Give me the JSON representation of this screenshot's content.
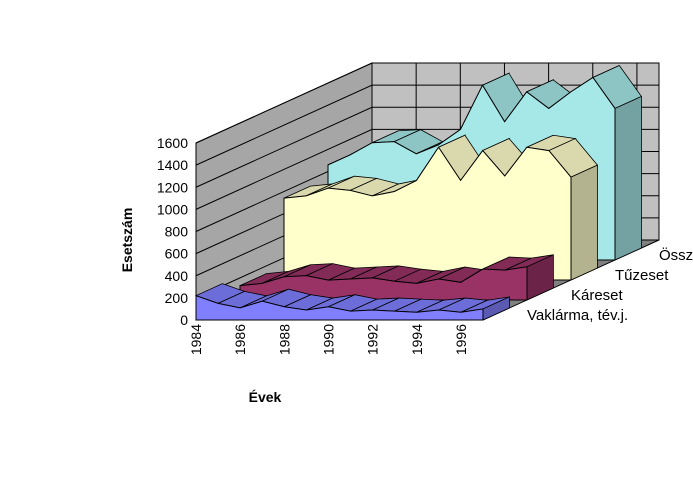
{
  "chart_data": {
    "type": "area",
    "projection": "3d",
    "title": "",
    "xlabel": "Évek",
    "ylabel": "Esetszám",
    "ylim": [
      0,
      1600
    ],
    "yticks": [
      0,
      200,
      400,
      600,
      800,
      1000,
      1200,
      1400,
      1600
    ],
    "x": [
      1984,
      1985,
      1986,
      1987,
      1988,
      1989,
      1990,
      1991,
      1992,
      1993,
      1994,
      1995,
      1996,
      1997
    ],
    "xtick_labels": [
      "1984",
      "1986",
      "1988",
      "1990",
      "1992",
      "1994",
      "1996"
    ],
    "grid": true,
    "series": [
      {
        "name": "Vaklárma, tév.j.",
        "color": "#8080ff",
        "values": [
          220,
          150,
          110,
          170,
          120,
          90,
          120,
          80,
          90,
          80,
          70,
          90,
          70,
          100
        ]
      },
      {
        "name": "Káreset",
        "color": "#993366",
        "values": [
          130,
          150,
          210,
          220,
          180,
          190,
          200,
          170,
          150,
          190,
          160,
          280,
          270,
          300
        ]
      },
      {
        "name": "Tűzeset",
        "color": "#ffffcc",
        "values": [
          740,
          760,
          830,
          810,
          760,
          800,
          900,
          1200,
          900,
          1170,
          940,
          1200,
          1170,
          930
        ]
      },
      {
        "name": "Összesen",
        "color": "#a6e8e8",
        "values": [
          860,
          950,
          1060,
          1070,
          960,
          1040,
          1180,
          1580,
          1250,
          1520,
          1370,
          1520,
          1650,
          1370
        ]
      }
    ]
  }
}
